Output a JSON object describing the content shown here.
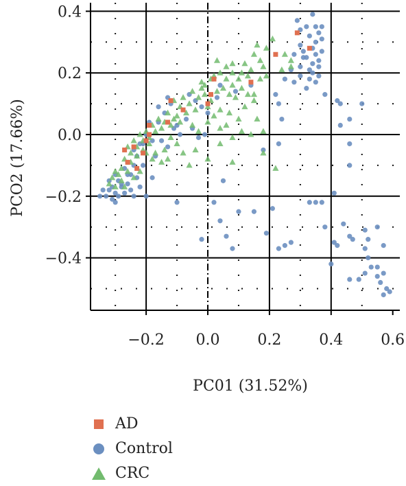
{
  "chart_data": {
    "type": "scatter",
    "title": "",
    "xlabel": "PC01 (31.52%)",
    "ylabel": "PCO2 (17.66%)",
    "xlim": [
      -0.37,
      0.62
    ],
    "ylim": [
      -0.57,
      0.42
    ],
    "xticks": [
      -0.2,
      0.0,
      0.2,
      0.4,
      0.6
    ],
    "xtick_labels": [
      "−0.2",
      "0.0",
      "0.2",
      "0.4",
      "0.6"
    ],
    "yticks": [
      -0.4,
      -0.2,
      0.0,
      0.2,
      0.4
    ],
    "ytick_labels": [
      "−0.4",
      "−0.2",
      "0.0",
      "0.2",
      "0.4"
    ],
    "grid": true,
    "reference_lines": {
      "x": 0.0
    },
    "legend_position": "bottom-left",
    "series": [
      {
        "name": "AD",
        "marker": "square",
        "color": "#E07050",
        "points": [
          [
            0.29,
            0.33
          ],
          [
            0.33,
            0.28
          ],
          [
            0.22,
            0.26
          ],
          [
            0.14,
            0.17
          ],
          [
            0.02,
            0.18
          ],
          [
            0.01,
            0.13
          ],
          [
            0.0,
            0.1
          ],
          [
            -0.08,
            0.08
          ],
          [
            -0.12,
            0.11
          ],
          [
            -0.13,
            0.04
          ],
          [
            -0.19,
            0.0
          ],
          [
            -0.19,
            0.03
          ],
          [
            -0.2,
            -0.02
          ],
          [
            -0.24,
            -0.04
          ],
          [
            -0.27,
            -0.05
          ],
          [
            -0.26,
            -0.09
          ],
          [
            -0.21,
            -0.06
          ],
          [
            -0.23,
            -0.11
          ]
        ]
      },
      {
        "name": "Control",
        "marker": "circle",
        "color": "#6B8FC0",
        "points": [
          [
            0.34,
            0.39
          ],
          [
            0.32,
            0.35
          ],
          [
            0.35,
            0.35
          ],
          [
            0.37,
            0.35
          ],
          [
            0.3,
            0.34
          ],
          [
            0.36,
            0.33
          ],
          [
            0.33,
            0.32
          ],
          [
            0.37,
            0.31
          ],
          [
            0.35,
            0.3
          ],
          [
            0.3,
            0.29
          ],
          [
            0.34,
            0.28
          ],
          [
            0.37,
            0.27
          ],
          [
            0.31,
            0.27
          ],
          [
            0.35,
            0.26
          ],
          [
            0.32,
            0.25
          ],
          [
            0.28,
            0.26
          ],
          [
            0.36,
            0.24
          ],
          [
            0.34,
            0.23
          ],
          [
            0.3,
            0.22
          ],
          [
            0.33,
            0.21
          ],
          [
            0.27,
            0.21
          ],
          [
            0.36,
            0.19
          ],
          [
            0.3,
            0.19
          ],
          [
            0.33,
            0.18
          ],
          [
            0.25,
            0.18
          ],
          [
            0.35,
            0.17
          ],
          [
            0.28,
            0.17
          ],
          [
            0.32,
            0.15
          ],
          [
            0.38,
            0.13
          ],
          [
            0.43,
            0.1
          ],
          [
            0.42,
            0.11
          ],
          [
            0.5,
            0.1
          ],
          [
            0.46,
            0.05
          ],
          [
            0.43,
            0.03
          ],
          [
            0.46,
            -0.03
          ],
          [
            0.46,
            -0.1
          ],
          [
            0.41,
            -0.19
          ],
          [
            0.37,
            -0.22
          ],
          [
            0.33,
            -0.22
          ],
          [
            0.35,
            -0.22
          ],
          [
            0.21,
            -0.24
          ],
          [
            0.38,
            -0.3
          ],
          [
            0.44,
            -0.29
          ],
          [
            0.46,
            -0.33
          ],
          [
            0.41,
            -0.35
          ],
          [
            0.47,
            -0.34
          ],
          [
            0.51,
            -0.31
          ],
          [
            0.52,
            -0.34
          ],
          [
            0.55,
            -0.3
          ],
          [
            0.57,
            -0.36
          ],
          [
            0.51,
            -0.37
          ],
          [
            0.52,
            -0.4
          ],
          [
            0.53,
            -0.43
          ],
          [
            0.55,
            -0.43
          ],
          [
            0.57,
            -0.45
          ],
          [
            0.55,
            -0.46
          ],
          [
            0.56,
            -0.48
          ],
          [
            0.58,
            -0.5
          ],
          [
            0.59,
            -0.51
          ],
          [
            0.57,
            -0.52
          ],
          [
            0.51,
            -0.45
          ],
          [
            0.49,
            -0.47
          ],
          [
            0.46,
            -0.47
          ],
          [
            0.4,
            -0.42
          ],
          [
            0.42,
            -0.36
          ],
          [
            0.25,
            -0.36
          ],
          [
            0.23,
            -0.37
          ],
          [
            0.27,
            -0.35
          ],
          [
            0.19,
            -0.32
          ],
          [
            0.15,
            -0.25
          ],
          [
            0.1,
            -0.25
          ],
          [
            0.08,
            -0.37
          ],
          [
            0.06,
            -0.33
          ],
          [
            0.04,
            -0.28
          ],
          [
            0.02,
            -0.22
          ],
          [
            -0.02,
            -0.34
          ],
          [
            -0.1,
            -0.22
          ],
          [
            0.05,
            -0.15
          ],
          [
            0.18,
            -0.05
          ],
          [
            0.23,
            -0.03
          ],
          [
            0.24,
            0.05
          ],
          [
            0.23,
            0.1
          ],
          [
            0.22,
            0.13
          ],
          [
            0.04,
            0.16
          ],
          [
            0.03,
            0.12
          ],
          [
            -0.01,
            0.0
          ],
          [
            -0.03,
            -0.01
          ],
          [
            -0.05,
            0.02
          ],
          [
            -0.07,
            0.05
          ],
          [
            -0.1,
            0.03
          ],
          [
            -0.12,
            0.1
          ],
          [
            -0.14,
            0.07
          ],
          [
            -0.16,
            0.04
          ],
          [
            -0.18,
            -0.02
          ],
          [
            -0.2,
            0.0
          ],
          [
            -0.22,
            -0.03
          ],
          [
            -0.23,
            -0.07
          ],
          [
            -0.24,
            -0.1
          ],
          [
            -0.25,
            -0.13
          ],
          [
            -0.26,
            -0.16
          ],
          [
            -0.27,
            -0.11
          ],
          [
            -0.28,
            -0.17
          ],
          [
            -0.29,
            -0.15
          ],
          [
            -0.3,
            -0.19
          ],
          [
            -0.31,
            -0.17
          ],
          [
            -0.32,
            -0.18
          ],
          [
            -0.33,
            -0.2
          ],
          [
            -0.31,
            -0.21
          ],
          [
            -0.29,
            -0.2
          ],
          [
            -0.28,
            -0.16
          ],
          [
            -0.26,
            -0.13
          ],
          [
            -0.25,
            -0.18
          ],
          [
            -0.22,
            -0.17
          ],
          [
            -0.2,
            -0.2
          ],
          [
            -0.23,
            -0.14
          ],
          [
            -0.21,
            -0.1
          ],
          [
            -0.18,
            -0.14
          ],
          [
            -0.17,
            -0.07
          ],
          [
            -0.15,
            -0.02
          ],
          [
            -0.13,
            -0.04
          ],
          [
            -0.11,
            0.02
          ],
          [
            -0.09,
            0.0
          ],
          [
            -0.35,
            -0.2
          ],
          [
            -0.3,
            -0.22
          ],
          [
            -0.27,
            -0.19
          ],
          [
            -0.24,
            -0.2
          ],
          [
            -0.34,
            -0.18
          ],
          [
            -0.32,
            -0.15
          ],
          [
            -0.3,
            -0.13
          ],
          [
            -0.26,
            -0.09
          ],
          [
            -0.24,
            -0.05
          ],
          [
            -0.21,
            -0.03
          ],
          [
            -0.19,
            0.04
          ],
          [
            -0.16,
            0.09
          ],
          [
            -0.13,
            0.12
          ],
          [
            -0.06,
            0.13
          ],
          [
            -0.04,
            0.11
          ],
          [
            -0.02,
            0.09
          ],
          [
            0.0,
            0.07
          ],
          [
            0.09,
            0.14
          ],
          [
            0.14,
            0.16
          ],
          [
            0.36,
            0.22
          ],
          [
            0.29,
            0.37
          ],
          [
            0.31,
            0.25
          ],
          [
            0.34,
            0.2
          ]
        ]
      },
      {
        "name": "CRC",
        "marker": "triangle",
        "color": "#72BB6E",
        "points": [
          [
            0.16,
            0.29
          ],
          [
            0.15,
            0.26
          ],
          [
            0.17,
            0.24
          ],
          [
            0.18,
            0.22
          ],
          [
            0.12,
            0.23
          ],
          [
            0.14,
            0.21
          ],
          [
            0.11,
            0.2
          ],
          [
            0.13,
            0.19
          ],
          [
            0.08,
            0.2
          ],
          [
            0.1,
            0.18
          ],
          [
            0.06,
            0.18
          ],
          [
            0.08,
            0.16
          ],
          [
            0.05,
            0.15
          ],
          [
            0.07,
            0.13
          ],
          [
            0.03,
            0.14
          ],
          [
            0.11,
            0.15
          ],
          [
            0.13,
            0.13
          ],
          [
            0.09,
            0.12
          ],
          [
            0.15,
            0.11
          ],
          [
            0.12,
            0.09
          ],
          [
            0.07,
            0.07
          ],
          [
            0.1,
            0.05
          ],
          [
            0.06,
            0.03
          ],
          [
            0.11,
            0.01
          ],
          [
            0.16,
            0.05
          ],
          [
            0.18,
            0.01
          ],
          [
            0.14,
            0.0
          ],
          [
            0.08,
            -0.01
          ],
          [
            0.04,
            0.08
          ],
          [
            0.01,
            0.11
          ],
          [
            -0.01,
            0.13
          ],
          [
            -0.02,
            0.15
          ],
          [
            -0.03,
            0.12
          ],
          [
            -0.01,
            0.16
          ],
          [
            0.0,
            0.09
          ],
          [
            -0.04,
            0.08
          ],
          [
            -0.06,
            0.1
          ],
          [
            -0.07,
            0.07
          ],
          [
            -0.09,
            0.09
          ],
          [
            -0.1,
            0.06
          ],
          [
            -0.11,
            0.05
          ],
          [
            -0.12,
            0.03
          ],
          [
            -0.13,
            0.07
          ],
          [
            -0.14,
            0.04
          ],
          [
            -0.15,
            0.02
          ],
          [
            -0.16,
            0.05
          ],
          [
            -0.17,
            0.01
          ],
          [
            -0.18,
            0.03
          ],
          [
            -0.19,
            -0.01
          ],
          [
            -0.2,
            0.01
          ],
          [
            -0.21,
            -0.02
          ],
          [
            -0.22,
            0.0
          ],
          [
            -0.23,
            -0.04
          ],
          [
            -0.24,
            -0.02
          ],
          [
            -0.25,
            -0.06
          ],
          [
            -0.26,
            -0.04
          ],
          [
            -0.27,
            -0.08
          ],
          [
            -0.28,
            -0.11
          ],
          [
            -0.29,
            -0.13
          ],
          [
            -0.3,
            -0.12
          ],
          [
            -0.31,
            -0.14
          ],
          [
            -0.32,
            -0.16
          ],
          [
            -0.3,
            -0.17
          ],
          [
            -0.28,
            -0.15
          ],
          [
            -0.26,
            -0.12
          ],
          [
            -0.25,
            -0.09
          ],
          [
            -0.23,
            -0.07
          ],
          [
            -0.21,
            -0.05
          ],
          [
            -0.19,
            -0.03
          ],
          [
            -0.17,
            -0.06
          ],
          [
            -0.15,
            -0.09
          ],
          [
            -0.14,
            -0.05
          ],
          [
            -0.12,
            -0.01
          ],
          [
            -0.08,
            -0.06
          ],
          [
            -0.06,
            -0.1
          ],
          [
            -0.04,
            -0.05
          ],
          [
            -0.05,
            0.03
          ],
          [
            -0.03,
            0.01
          ],
          [
            0.0,
            0.04
          ],
          [
            0.02,
            0.06
          ],
          [
            0.04,
            0.02
          ],
          [
            0.04,
            -0.03
          ],
          [
            0.0,
            -0.08
          ],
          [
            0.08,
            -0.09
          ],
          [
            0.18,
            -0.06
          ],
          [
            0.22,
            -0.11
          ],
          [
            0.08,
            0.23
          ],
          [
            0.06,
            0.22
          ],
          [
            0.04,
            0.2
          ],
          [
            0.02,
            0.19
          ],
          [
            0.01,
            0.18
          ],
          [
            -0.02,
            0.17
          ],
          [
            -0.05,
            0.14
          ],
          [
            -0.08,
            0.12
          ],
          [
            -0.11,
            0.11
          ],
          [
            0.19,
            0.28
          ],
          [
            0.21,
            0.31
          ],
          [
            0.25,
            0.26
          ],
          [
            0.27,
            0.24
          ],
          [
            0.24,
            0.21
          ],
          [
            0.27,
            0.22
          ],
          [
            0.19,
            0.19
          ],
          [
            -0.24,
            -0.14
          ],
          [
            -0.27,
            -0.17
          ],
          [
            -0.22,
            -0.12
          ],
          [
            -0.1,
            -0.03
          ],
          [
            -0.13,
            -0.08
          ],
          [
            0.03,
            0.24
          ],
          [
            0.17,
            0.18
          ],
          [
            0.15,
            0.13
          ],
          [
            -0.09,
            0.04
          ],
          [
            -0.18,
            -0.08
          ],
          [
            -0.2,
            -0.06
          ]
        ]
      }
    ]
  }
}
